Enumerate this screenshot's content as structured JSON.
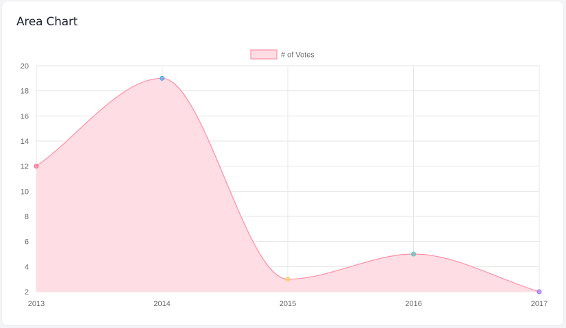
{
  "card": {
    "title": "Area Chart"
  },
  "chart_data": {
    "type": "area",
    "title": "",
    "xlabel": "",
    "ylabel": "",
    "x": [
      "2013",
      "2014",
      "2015",
      "2016",
      "2017"
    ],
    "series": [
      {
        "name": "# of Votes",
        "values": [
          12,
          19,
          3,
          5,
          2
        ],
        "fill_color": "#ffdde4",
        "line_color": "#ff8fa6",
        "point_colors": [
          "#ff6384",
          "#36a2eb",
          "#ffce56",
          "#4bc0c0",
          "#9966ff"
        ]
      }
    ],
    "ylim": [
      2,
      20
    ],
    "yticks": [
      "2",
      "4",
      "6",
      "8",
      "10",
      "12",
      "14",
      "16",
      "18",
      "20"
    ],
    "grid": true,
    "legend": "top-center"
  }
}
